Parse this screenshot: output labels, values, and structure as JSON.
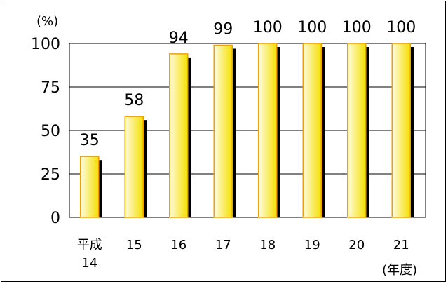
{
  "chart_data": {
    "type": "bar",
    "categories": [
      [
        "平成",
        "14"
      ],
      [
        "15"
      ],
      [
        "16"
      ],
      [
        "17"
      ],
      [
        "18"
      ],
      [
        "19"
      ],
      [
        "20"
      ],
      [
        "21"
      ]
    ],
    "values": [
      35,
      58,
      94,
      99,
      100,
      100,
      100,
      100
    ],
    "data_labels": [
      "35",
      "58",
      "94",
      "99",
      "100",
      "100",
      "100",
      "100"
    ],
    "y_unit": "(%)",
    "x_unit": "(年度)",
    "ylim": [
      0,
      100
    ],
    "yticks": [
      "0",
      "25",
      "50",
      "75",
      "100"
    ],
    "grid": true,
    "colors": {
      "bar_fill_light": "#fffbe0",
      "bar_fill_dark": "#f5e000",
      "bar_border": "#f0a000",
      "bar_shadow": "#000000",
      "grid": "#000000"
    }
  }
}
